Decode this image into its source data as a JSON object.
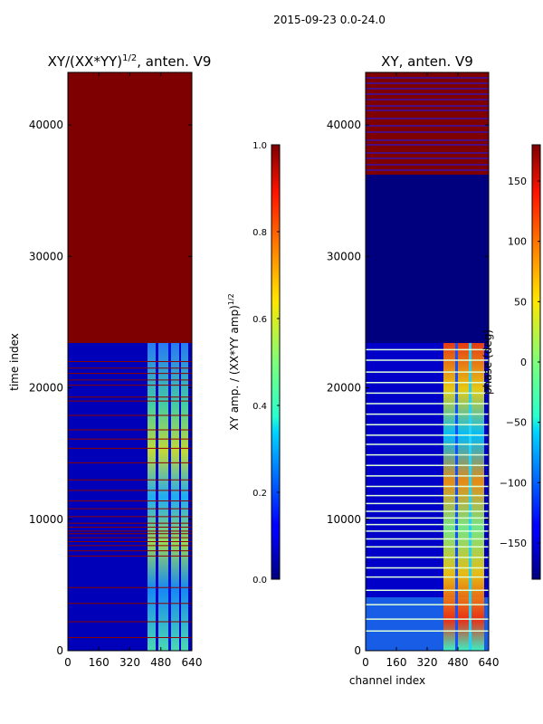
{
  "figure": {
    "suptitle": "2015-09-23 0.0-24.0"
  },
  "chart_data": [
    {
      "type": "heatmap",
      "title_prefix": "XY/(XX*YY)",
      "title_exp": "1/2",
      "title_suffix": ", anten. V9",
      "xlabel": "",
      "ylabel": "time index",
      "xlim": [
        0,
        640
      ],
      "ylim": [
        0,
        44000
      ],
      "xticks": [
        0,
        160,
        320,
        480,
        640
      ],
      "yticks": [
        0,
        10000,
        20000,
        30000,
        40000
      ],
      "colormap": "jet",
      "colorbar": {
        "label_main": "XY amp. / (XX*YY amp)",
        "label_exp": "1/2",
        "range": [
          0.0,
          1.0
        ],
        "ticks": [
          "0.0",
          "0.2",
          "0.4",
          "0.6",
          "0.8",
          "1.0"
        ]
      },
      "regions": [
        {
          "y_from": 23500,
          "y_to": 44000,
          "value": 1.0,
          "desc": "saturated (flagged) top block"
        },
        {
          "y_from": 0,
          "y_to": 23500,
          "value": 0.05,
          "desc": "low amplitude, noisy band at channels ~400-620"
        }
      ],
      "active_band_channels": [
        410,
        620
      ],
      "flag_rows": [
        1000,
        2200,
        3600,
        4800,
        7200,
        7600,
        8000,
        8300,
        8600,
        8900,
        9100,
        9400,
        9700,
        10200,
        10800,
        11400,
        12200,
        13000,
        14300,
        15400,
        16100,
        16800,
        17900,
        19000,
        19300,
        20200,
        20600,
        21100,
        21500,
        22000
      ]
    },
    {
      "type": "heatmap",
      "title": "XY, anten. V9",
      "xlabel": "channel index",
      "ylabel": "",
      "xlim": [
        0,
        640
      ],
      "ylim": [
        0,
        44000
      ],
      "xticks": [
        0,
        160,
        320,
        480,
        640
      ],
      "yticks": [
        0,
        10000,
        20000,
        30000,
        40000
      ],
      "colormap": "jet",
      "colorbar": {
        "label_main": "phase (deg)",
        "range": [
          -180,
          180
        ],
        "ticks": [
          "−150",
          "−100",
          "−50",
          "0",
          "50",
          "100",
          "150"
        ]
      },
      "regions": [
        {
          "y_from": 36500,
          "y_to": 44000,
          "value": 180,
          "desc": "dark red block with blue stripes"
        },
        {
          "y_from": 23500,
          "y_to": 36500,
          "value": -180,
          "desc": "dark blue block"
        },
        {
          "y_from": 0,
          "y_to": 23500,
          "value": -130,
          "desc": "mostly blue with mixed phases at channels ~410-620"
        }
      ],
      "active_band_channels": [
        410,
        620
      ],
      "flag_rows": [
        1500,
        2400,
        3500,
        4600,
        5600,
        6300,
        7100,
        7900,
        8500,
        9100,
        9600,
        10100,
        10600,
        11200,
        11800,
        12500,
        13300,
        14100,
        14900,
        15700,
        16400,
        17200,
        18000,
        18800,
        19600,
        20400,
        21200,
        22100,
        22900
      ]
    }
  ]
}
